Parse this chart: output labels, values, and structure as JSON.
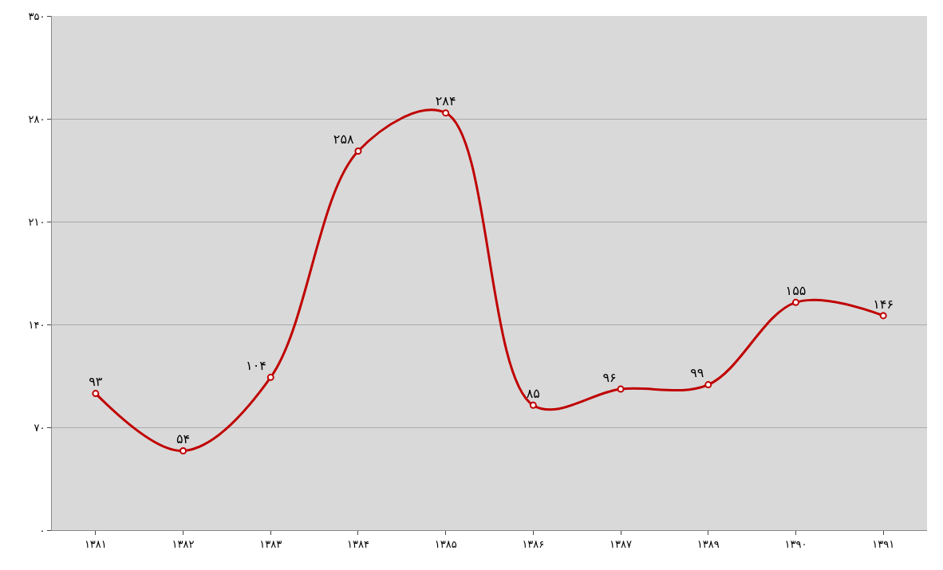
{
  "chart_data": {
    "type": "line",
    "categories": [
      "۱۳۸۱",
      "۱۳۸۲",
      "۱۳۸۳",
      "۱۳۸۴",
      "۱۳۸۵",
      "۱۳۸۶",
      "۱۳۸۷",
      "۱۳۸۹",
      "۱۳۹۰",
      "۱۳۹۱"
    ],
    "series": [
      {
        "color": "#c00000",
        "values": [
          93,
          54,
          104,
          258,
          284,
          85,
          96,
          99,
          155,
          146
        ],
        "value_labels": [
          "۹۳",
          "۵۴",
          "۱۰۴",
          "۲۵۸",
          "۲۸۴",
          "۸۵",
          "۹۶",
          "۹۹",
          "۱۵۵",
          "۱۴۶"
        ]
      }
    ],
    "ylim": [
      0,
      350
    ],
    "yticks": [
      {
        "value": 0,
        "label": "۰"
      },
      {
        "value": 70,
        "label": "۷۰"
      },
      {
        "value": 140,
        "label": "۱۴۰"
      },
      {
        "value": 210,
        "label": "۲۱۰"
      },
      {
        "value": 280,
        "label": "۲۸۰"
      },
      {
        "value": 350,
        "label": "۳۵۰"
      }
    ],
    "grid": "y",
    "marker": "circle",
    "line_style": "solid",
    "legend": false
  }
}
